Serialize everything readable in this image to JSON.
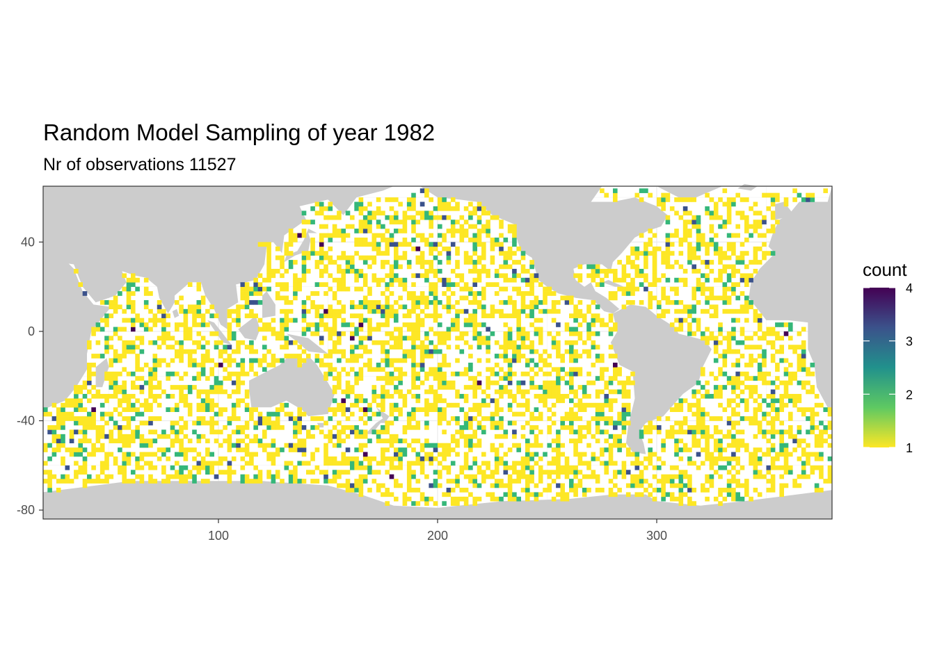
{
  "chart_data": {
    "type": "heatmap",
    "title": "Random Model Sampling of year 1982",
    "subtitle": "Nr of observations 11527",
    "xlabel": "",
    "ylabel": "",
    "xlim": [
      20,
      380
    ],
    "ylim": [
      -84,
      65
    ],
    "x_ticks": [
      100,
      200,
      300
    ],
    "y_ticks": [
      40,
      0,
      -40,
      -80
    ],
    "x_tick_labels": [
      "100",
      "200",
      "300"
    ],
    "y_tick_labels": [
      "40",
      "0",
      "-40",
      "-80"
    ],
    "grid_resolution_deg": 2,
    "background_land_color": "#cccccc",
    "ocean_color": "#ffffff",
    "grid": true,
    "legend": {
      "title": "count",
      "placement": "right",
      "range": [
        1,
        4
      ],
      "breaks": [
        1,
        2,
        3,
        4
      ],
      "labels": [
        "1",
        "2",
        "3",
        "4"
      ],
      "colormap": "viridis (reversed)",
      "colors": [
        "#fde725",
        "#5ec962",
        "#21918c",
        "#3b528b",
        "#440154"
      ]
    },
    "count_distribution": {
      "values": [
        1,
        2,
        3,
        4
      ],
      "approx_share": [
        0.82,
        0.15,
        0.025,
        0.005
      ]
    }
  }
}
